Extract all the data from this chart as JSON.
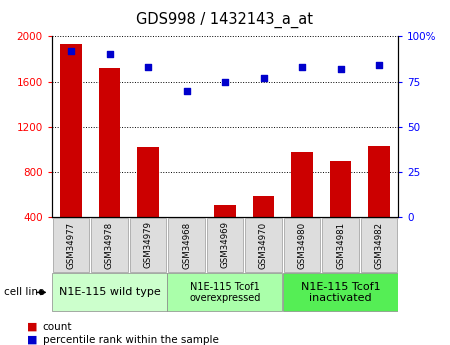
{
  "title": "GDS998 / 1432143_a_at",
  "samples": [
    "GSM34977",
    "GSM34978",
    "GSM34979",
    "GSM34968",
    "GSM34969",
    "GSM34970",
    "GSM34980",
    "GSM34981",
    "GSM34982"
  ],
  "counts": [
    1930,
    1720,
    1020,
    380,
    510,
    590,
    980,
    900,
    1030
  ],
  "percentiles": [
    92,
    90,
    83,
    70,
    75,
    77,
    83,
    82,
    84
  ],
  "ylim_left": [
    400,
    2000
  ],
  "ylim_right": [
    0,
    100
  ],
  "yticks_left": [
    400,
    800,
    1200,
    1600,
    2000
  ],
  "yticks_right": [
    0,
    25,
    50,
    75,
    100
  ],
  "bar_color": "#cc0000",
  "scatter_color": "#0000cc",
  "grid_color": "#000000",
  "groups": [
    {
      "label": "N1E-115 wild type",
      "start": 0,
      "end": 3,
      "color": "#ccffcc",
      "fontsize": 8
    },
    {
      "label": "N1E-115 Tcof1\noverexpressed",
      "start": 3,
      "end": 6,
      "color": "#aaffaa",
      "fontsize": 7
    },
    {
      "label": "N1E-115 Tcof1\ninactivated",
      "start": 6,
      "end": 9,
      "color": "#55ee55",
      "fontsize": 8
    }
  ],
  "cell_line_label": "cell line",
  "legend_count_label": "count",
  "legend_percentile_label": "percentile rank within the sample",
  "bar_width": 0.55,
  "tick_label_bg": "#dddddd",
  "tick_label_border": "#aaaaaa"
}
